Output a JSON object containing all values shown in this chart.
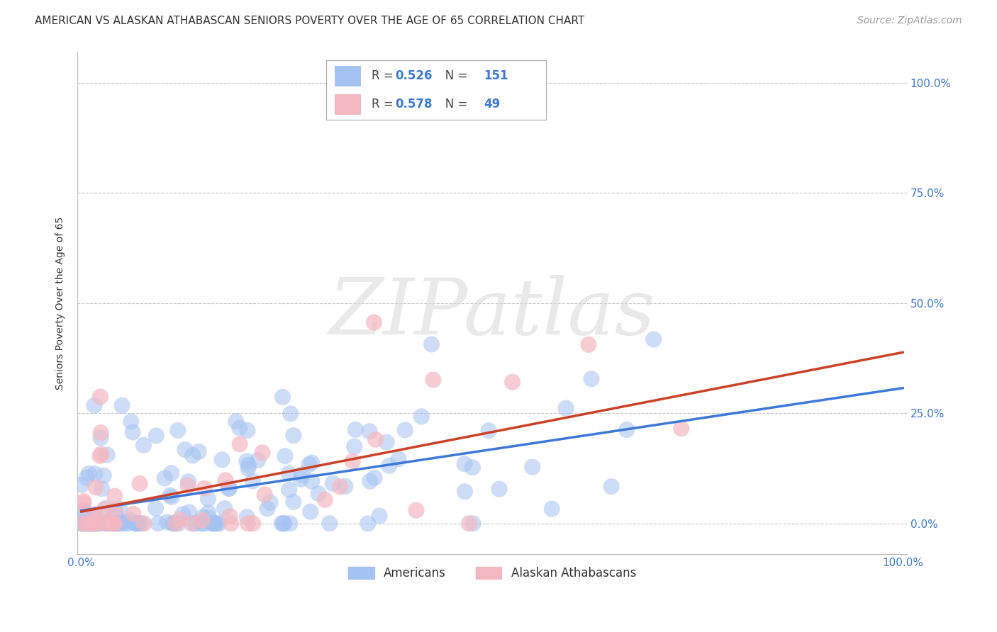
{
  "title": "AMERICAN VS ALASKAN ATHABASCAN SENIORS POVERTY OVER THE AGE OF 65 CORRELATION CHART",
  "source": "Source: ZipAtlas.com",
  "ylabel": "Seniors Poverty Over the Age of 65",
  "ytick_labels": [
    "0.0%",
    "25.0%",
    "50.0%",
    "75.0%",
    "100.0%"
  ],
  "ytick_values": [
    0.0,
    0.25,
    0.5,
    0.75,
    1.0
  ],
  "xtick_labels": [
    "0.0%",
    "100.0%"
  ],
  "xtick_values": [
    0.0,
    1.0
  ],
  "american_color": "#a4c2f4",
  "athabascan_color": "#f4b8c1",
  "american_line_color": "#3c78d8",
  "athabascan_line_color": "#cc4125",
  "american_R": 0.526,
  "american_N": 151,
  "athabascan_R": 0.578,
  "athabascan_N": 49,
  "legend_americans": "Americans",
  "legend_athabascans": "Alaskan Athabascans",
  "watermark": "ZIPatlas",
  "background_color": "#ffffff",
  "grid_color": "#b0b0b0",
  "title_fontsize": 11,
  "axis_label_fontsize": 10,
  "tick_fontsize": 11,
  "source_fontsize": 10
}
